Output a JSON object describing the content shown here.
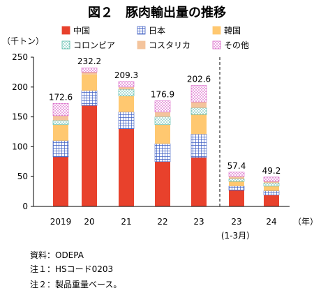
{
  "chart_data": {
    "type": "bar",
    "stacked": true,
    "title": "図２　豚肉輸出量の推移",
    "ylabel": "（千トン）",
    "xunit": "（年）",
    "ylim": [
      0,
      250
    ],
    "yticks": [
      0,
      50,
      100,
      150,
      200,
      250
    ],
    "categories": [
      "2019",
      "20",
      "21",
      "22",
      "23",
      "23",
      "24"
    ],
    "category_sublabels": [
      "",
      "",
      "",
      "",
      "",
      "(1-3月）",
      ""
    ],
    "totals": [
      "172.6",
      "232.2",
      "209.3",
      "176.9",
      "202.6",
      "57.4",
      "49.2"
    ],
    "series": [
      {
        "name": "中国",
        "color": "#e8412c",
        "pattern": "solid",
        "values": [
          83,
          169,
          130,
          75,
          82,
          27,
          19
        ]
      },
      {
        "name": "日本",
        "color": "#3f5fc4",
        "pattern": "grid",
        "values": [
          27,
          25,
          28,
          30,
          39,
          7,
          7
        ]
      },
      {
        "name": "韓国",
        "color": "#ffc870",
        "pattern": "solid",
        "values": [
          27,
          27,
          27,
          32,
          33,
          8,
          8
        ]
      },
      {
        "name": "コロンビア",
        "color": "#4db6a4",
        "pattern": "dots",
        "values": [
          7,
          0,
          11,
          13,
          11,
          4,
          5
        ]
      },
      {
        "name": "コスタリカ",
        "color": "#f4c49c",
        "pattern": "solid",
        "values": [
          8,
          4,
          4,
          8,
          10,
          4,
          3
        ]
      },
      {
        "name": "その他",
        "color": "#d966c8",
        "pattern": "dots",
        "values": [
          20.6,
          7.2,
          9.3,
          18.9,
          27.6,
          7.4,
          7.2
        ]
      }
    ],
    "divider_after_index": 4,
    "grid": false,
    "legend_position": "top"
  },
  "notes": [
    "資料：ODEPA",
    "注１：HSコード0203",
    "注２：製品重量ベース。"
  ]
}
